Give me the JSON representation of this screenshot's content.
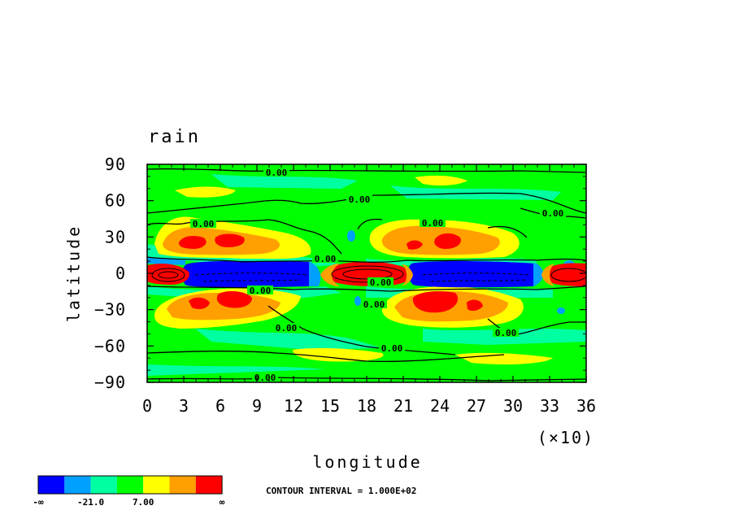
{
  "chart_data": {
    "type": "heatmap",
    "title": "rain",
    "xlabel": "longitude",
    "ylabel": "latitude",
    "x_scale_note": "(×10)",
    "xlim": [
      0,
      360
    ],
    "ylim": [
      -90,
      90
    ],
    "x_ticks": [
      0,
      3,
      6,
      9,
      12,
      15,
      18,
      21,
      24,
      27,
      30,
      33,
      36
    ],
    "y_ticks": [
      90,
      60,
      30,
      0,
      -30,
      -60,
      -90
    ],
    "y_tick_labels": [
      "90",
      "60",
      "30",
      "0",
      "−30",
      "−60",
      "−90"
    ],
    "contour_interval_text": "CONTOUR INTERVAL = 1.000E+02",
    "contour_labels": [
      "0.00"
    ],
    "colorbar": {
      "colors": [
        "#0000ff",
        "#00a0ff",
        "#00ffa0",
        "#00ff00",
        "#ffff00",
        "#ffa000",
        "#ff0000"
      ],
      "tick_labels": [
        "-∞",
        "-21.0",
        "7.00",
        "∞"
      ]
    },
    "regions": [
      {
        "name": "background",
        "color": "#00ff00"
      },
      {
        "name": "equatorial-minimum",
        "color": "#0000ff"
      },
      {
        "name": "equatorial-maxima",
        "color": "#ff0000"
      },
      {
        "name": "subtropical-maxima",
        "color": "#ffa000"
      }
    ]
  }
}
